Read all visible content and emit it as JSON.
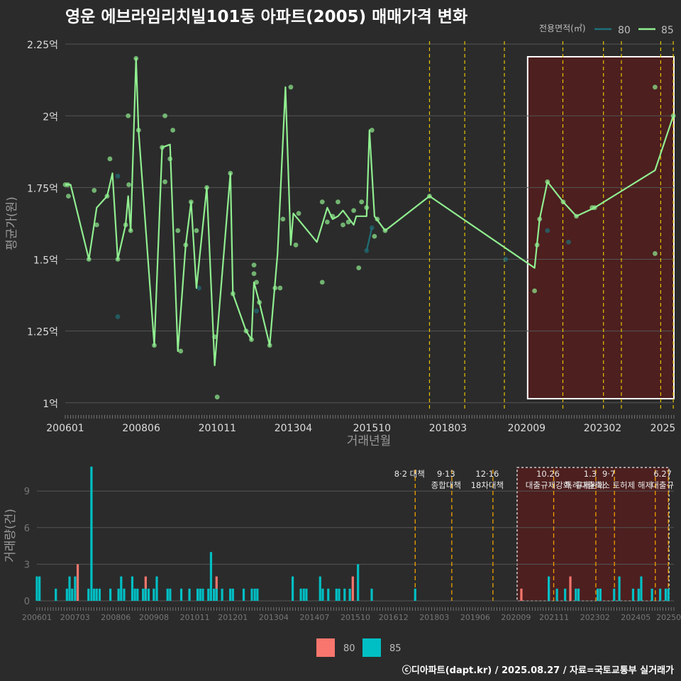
{
  "title": "영운 에브라임리치빌101동 아파트(2005) 매매가격 변화",
  "footer": "ⓒ디아파트(dapt.kr) / 2025.08.27 / 자료=국토교통부 실거래가",
  "colors": {
    "background": "#2b2b2b",
    "s80": "#1f6f78",
    "s85": "#90ee90",
    "bar80": "#f8766d",
    "bar85": "#00bfc4",
    "policy": "#e6c300",
    "policy2": "#f0a000",
    "highlight": "#5a1c1c"
  },
  "chart_data": [
    {
      "type": "line",
      "title": "영운 에브라임리치빌101동 아파트(2005) 매매가격 변화",
      "xlabel": "거래년월",
      "ylabel": "평균가(원)",
      "ylim": [
        0.95,
        2.25
      ],
      "yticks": [
        "1억",
        "1.25억",
        "1.5억",
        "1.75억",
        "2억",
        "2.25억"
      ],
      "xticks": [
        "200601",
        "200806",
        "201011",
        "201304",
        "201510",
        "201803",
        "202009",
        "202302",
        "2025"
      ],
      "legend_title": "전용면적(㎡)",
      "legend": [
        "80",
        "85"
      ],
      "policy_lines": [
        2017.58,
        2018.7,
        2019.96,
        2021.82,
        2023.11,
        2023.68,
        2024.93,
        2025.33
      ],
      "highlight_range": [
        2020.7,
        2025.35
      ],
      "series": [
        {
          "name": "85",
          "line": [
            [
              2006.0,
              1.76
            ],
            [
              2006.17,
              1.76
            ],
            [
              2006.75,
              1.5
            ],
            [
              2007.0,
              1.68
            ],
            [
              2007.33,
              1.72
            ],
            [
              2007.5,
              1.8
            ],
            [
              2007.67,
              1.5
            ],
            [
              2007.92,
              1.62
            ],
            [
              2008.0,
              1.72
            ],
            [
              2008.08,
              1.6
            ],
            [
              2008.25,
              2.2
            ],
            [
              2008.33,
              1.95
            ],
            [
              2008.83,
              1.2
            ],
            [
              2009.08,
              1.89
            ],
            [
              2009.33,
              1.9
            ],
            [
              2009.58,
              1.18
            ],
            [
              2009.83,
              1.55
            ],
            [
              2010.0,
              1.7
            ],
            [
              2010.17,
              1.4
            ],
            [
              2010.5,
              1.75
            ],
            [
              2010.75,
              1.13
            ],
            [
              2011.25,
              1.8
            ],
            [
              2011.33,
              1.38
            ],
            [
              2011.75,
              1.25
            ],
            [
              2011.92,
              1.22
            ],
            [
              2012.0,
              1.42
            ],
            [
              2012.17,
              1.35
            ],
            [
              2012.5,
              1.2
            ],
            [
              2012.75,
              1.52
            ],
            [
              2013.0,
              2.1
            ],
            [
              2013.17,
              1.55
            ],
            [
              2013.25,
              1.66
            ],
            [
              2014.0,
              1.56
            ],
            [
              2014.33,
              1.68
            ],
            [
              2014.5,
              1.64
            ],
            [
              2014.67,
              1.65
            ],
            [
              2014.83,
              1.67
            ],
            [
              2015.17,
              1.62
            ],
            [
              2015.25,
              1.65
            ],
            [
              2015.58,
              1.65
            ],
            [
              2015.67,
              1.95
            ],
            [
              2015.83,
              1.65
            ],
            [
              2016.17,
              1.6
            ],
            [
              2017.58,
              1.72
            ],
            [
              2020.92,
              1.47
            ],
            [
              2021.08,
              1.64
            ],
            [
              2021.33,
              1.77
            ],
            [
              2021.83,
              1.7
            ],
            [
              2022.25,
              1.65
            ],
            [
              2022.83,
              1.68
            ],
            [
              2024.75,
              1.81
            ],
            [
              2025.33,
              2.0
            ]
          ],
          "points": [
            [
              2006.0,
              1.76
            ],
            [
              2006.08,
              1.76
            ],
            [
              2006.1,
              1.72
            ],
            [
              2006.75,
              1.5
            ],
            [
              2006.92,
              1.74
            ],
            [
              2007.0,
              1.62
            ],
            [
              2007.33,
              1.72
            ],
            [
              2007.42,
              1.85
            ],
            [
              2007.67,
              1.5
            ],
            [
              2007.92,
              1.62
            ],
            [
              2008.0,
              2.0
            ],
            [
              2008.02,
              1.76
            ],
            [
              2008.08,
              1.6
            ],
            [
              2008.25,
              2.2
            ],
            [
              2008.33,
              1.95
            ],
            [
              2008.83,
              1.2
            ],
            [
              2009.08,
              1.89
            ],
            [
              2009.17,
              2.0
            ],
            [
              2009.17,
              1.77
            ],
            [
              2009.33,
              1.85
            ],
            [
              2009.42,
              1.95
            ],
            [
              2009.58,
              1.6
            ],
            [
              2009.67,
              1.18
            ],
            [
              2009.83,
              1.55
            ],
            [
              2010.0,
              1.7
            ],
            [
              2010.17,
              1.6
            ],
            [
              2010.5,
              1.75
            ],
            [
              2010.75,
              1.23
            ],
            [
              2010.83,
              1.02
            ],
            [
              2011.25,
              1.8
            ],
            [
              2011.33,
              1.38
            ],
            [
              2011.75,
              1.25
            ],
            [
              2011.92,
              1.22
            ],
            [
              2012.0,
              1.48
            ],
            [
              2012.0,
              1.45
            ],
            [
              2012.08,
              1.42
            ],
            [
              2012.17,
              1.35
            ],
            [
              2012.5,
              1.2
            ],
            [
              2012.67,
              1.4
            ],
            [
              2012.83,
              1.4
            ],
            [
              2012.92,
              1.64
            ],
            [
              2013.17,
              2.1
            ],
            [
              2013.33,
              1.55
            ],
            [
              2013.42,
              1.66
            ],
            [
              2014.17,
              1.7
            ],
            [
              2014.17,
              1.42
            ],
            [
              2014.33,
              1.63
            ],
            [
              2014.5,
              1.65
            ],
            [
              2014.67,
              1.7
            ],
            [
              2014.83,
              1.62
            ],
            [
              2015.0,
              1.63
            ],
            [
              2015.17,
              1.67
            ],
            [
              2015.33,
              1.47
            ],
            [
              2015.42,
              1.7
            ],
            [
              2015.58,
              1.68
            ],
            [
              2015.75,
              1.95
            ],
            [
              2015.83,
              1.58
            ],
            [
              2015.92,
              1.64
            ],
            [
              2016.17,
              1.6
            ],
            [
              2017.58,
              1.72
            ],
            [
              2020.92,
              1.39
            ],
            [
              2021.0,
              1.55
            ],
            [
              2021.08,
              1.64
            ],
            [
              2021.33,
              1.77
            ],
            [
              2021.83,
              1.7
            ],
            [
              2022.25,
              1.65
            ],
            [
              2022.75,
              1.68
            ],
            [
              2022.83,
              1.68
            ],
            [
              2024.75,
              2.1
            ],
            [
              2024.75,
              1.52
            ],
            [
              2025.33,
              2.0
            ]
          ]
        },
        {
          "name": "80",
          "line": [
            [
              2015.58,
              1.53
            ],
            [
              2015.75,
              1.61
            ]
          ],
          "points": [
            [
              2007.67,
              1.79
            ],
            [
              2007.67,
              1.3
            ],
            [
              2010.25,
              1.4
            ],
            [
              2012.08,
              1.32
            ],
            [
              2015.58,
              1.53
            ],
            [
              2015.75,
              1.61
            ],
            [
              2020.0,
              1.5
            ],
            [
              2021.33,
              1.6
            ],
            [
              2022.0,
              1.56
            ]
          ]
        }
      ]
    },
    {
      "type": "bar",
      "ylabel": "거래량(건)",
      "ylim": [
        0,
        11
      ],
      "yticks": [
        "0",
        "3",
        "6",
        "9"
      ],
      "xticks": [
        "200601",
        "200703",
        "200806",
        "200908",
        "201011",
        "201201",
        "201304",
        "201407",
        "201510",
        "201612",
        "201803",
        "201906",
        "202009",
        "202111",
        "202302",
        "202405",
        "202506"
      ],
      "policy_lines": [
        2017.58,
        2018.7,
        2019.96,
        2021.82,
        2023.11,
        2023.68,
        2024.93,
        2025.33
      ],
      "policy_labels": [
        {
          "x": 2017.58,
          "lines": [
            "8·2 대책"
          ]
        },
        {
          "x": 2018.7,
          "lines": [
            "9·13",
            "종합대책"
          ]
        },
        {
          "x": 2019.96,
          "lines": [
            "12·16",
            "18차대책"
          ]
        },
        {
          "x": 2021.82,
          "lines": [
            "10.26",
            "대출규제강화"
          ]
        },
        {
          "x": 2023.11,
          "lines": [
            "1.3",
            "규제완화"
          ]
        },
        {
          "x": 2023.68,
          "lines": [
            "9·7",
            "특례대출축소 토허제 해제"
          ]
        },
        {
          "x": 2025.33,
          "lines": [
            "6.27",
            "대출규"
          ]
        }
      ],
      "highlight_range": [
        2020.7,
        2025.35
      ],
      "legend": [
        "80",
        "85"
      ],
      "series": [
        {
          "name": "80",
          "bars": [
            [
              2007.25,
              3
            ],
            [
              2009.33,
              2
            ],
            [
              2011.5,
              2
            ],
            [
              2015.67,
              2
            ],
            [
              2020.83,
              1
            ],
            [
              2021.67,
              1
            ],
            [
              2022.33,
              2
            ]
          ]
        },
        {
          "name": "85",
          "bars": [
            [
              2006.0,
              2
            ],
            [
              2006.08,
              2
            ],
            [
              2006.58,
              1
            ],
            [
              2006.92,
              1
            ],
            [
              2007.0,
              2
            ],
            [
              2007.08,
              1
            ],
            [
              2007.17,
              2
            ],
            [
              2007.58,
              1
            ],
            [
              2007.67,
              11
            ],
            [
              2007.75,
              1
            ],
            [
              2007.83,
              1
            ],
            [
              2007.92,
              1
            ],
            [
              2008.25,
              1
            ],
            [
              2008.5,
              1
            ],
            [
              2008.58,
              2
            ],
            [
              2008.67,
              1
            ],
            [
              2008.92,
              2
            ],
            [
              2009.0,
              1
            ],
            [
              2009.08,
              1
            ],
            [
              2009.25,
              1
            ],
            [
              2009.33,
              1
            ],
            [
              2009.42,
              1
            ],
            [
              2009.58,
              1
            ],
            [
              2009.67,
              2
            ],
            [
              2010.0,
              1
            ],
            [
              2010.08,
              1
            ],
            [
              2010.42,
              1
            ],
            [
              2010.67,
              1
            ],
            [
              2010.92,
              1
            ],
            [
              2011.0,
              1
            ],
            [
              2011.08,
              1
            ],
            [
              2011.25,
              1
            ],
            [
              2011.33,
              4
            ],
            [
              2011.42,
              1
            ],
            [
              2011.5,
              1
            ],
            [
              2011.67,
              1
            ],
            [
              2011.92,
              1
            ],
            [
              2012.0,
              1
            ],
            [
              2012.33,
              1
            ],
            [
              2012.58,
              1
            ],
            [
              2012.67,
              1
            ],
            [
              2012.75,
              1
            ],
            [
              2013.83,
              2
            ],
            [
              2014.08,
              1
            ],
            [
              2014.17,
              1
            ],
            [
              2014.25,
              1
            ],
            [
              2014.67,
              2
            ],
            [
              2014.75,
              1
            ],
            [
              2014.92,
              1
            ],
            [
              2015.17,
              1
            ],
            [
              2015.25,
              1
            ],
            [
              2015.42,
              1
            ],
            [
              2015.58,
              1
            ],
            [
              2015.83,
              3
            ],
            [
              2016.25,
              1
            ],
            [
              2017.58,
              1
            ],
            [
              2021.67,
              2
            ],
            [
              2021.92,
              1
            ],
            [
              2022.17,
              1
            ],
            [
              2022.5,
              1
            ],
            [
              2022.58,
              1
            ],
            [
              2023.17,
              1
            ],
            [
              2023.25,
              1
            ],
            [
              2023.67,
              1
            ],
            [
              2023.83,
              2
            ],
            [
              2024.25,
              1
            ],
            [
              2024.42,
              1
            ],
            [
              2024.5,
              2
            ],
            [
              2024.83,
              1
            ],
            [
              2025.08,
              1
            ],
            [
              2025.25,
              1
            ],
            [
              2025.33,
              1
            ]
          ]
        }
      ]
    }
  ]
}
